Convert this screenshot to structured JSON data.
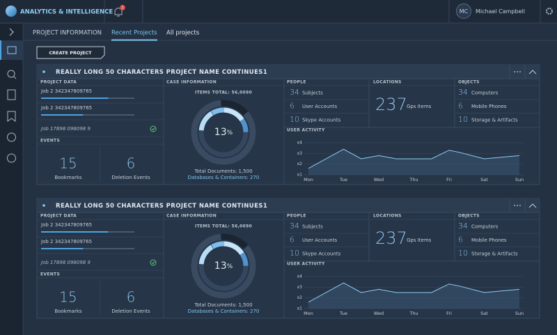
{
  "header": {
    "brand": "ANALYTICS & INTELLIGENCE",
    "notifications": "3",
    "user_initials": "MC",
    "user_name": "Michael Campbell"
  },
  "tabs": {
    "section": "PROJECT INFORMATION",
    "items": [
      "Recent Projects",
      "All projects"
    ]
  },
  "create_button": "CREATE PROJECT",
  "projects": [
    {
      "title": "REALLY LONG 50 CHARACTERS PROJECT NAME CONTINUES1",
      "project_data": {
        "label": "PROJECT DATA",
        "jobs": [
          {
            "name": "Job 2 342347809765",
            "progress": 72
          },
          {
            "name": "Job 2 342347809765",
            "progress": 45
          },
          {
            "name": "Job 17898 098098 9"
          }
        ]
      },
      "events": {
        "label": "EVENTS",
        "items": [
          {
            "count": 15,
            "label": "Bookmarks"
          },
          {
            "count": 6,
            "label": "Deletion Events"
          }
        ]
      },
      "case": {
        "label": "CASE INFORMATION",
        "items_total": "ITEMS TOTAL: 56,0090",
        "percent_value": "13",
        "percent_sign": "%",
        "total_documents": "Total Documents: 1,500",
        "databases": "Databases & Containers: 270"
      },
      "people": {
        "label": "PEOPLE",
        "items": [
          {
            "count": 34,
            "label": "Subjects"
          },
          {
            "count": 6,
            "label": "User Accounts"
          },
          {
            "count": 10,
            "label": "Skype Accounts"
          }
        ]
      },
      "locations": {
        "label": "LOCATIONS",
        "items": [
          {
            "count": 237,
            "label": "Gps Items"
          }
        ]
      },
      "objects": {
        "label": "OBJECTS",
        "items": [
          {
            "count": 34,
            "label": "Computers"
          },
          {
            "count": 6,
            "label": "Mobile Phones"
          },
          {
            "count": 10,
            "label": "Storage & Artifacts"
          }
        ]
      },
      "user_activity": {
        "label": "USER ACTIVITY",
        "categories": [
          "Mon",
          "Tue",
          "Wed",
          "Thu",
          "Fri",
          "Sat",
          "Sun"
        ],
        "x": [
          0,
          1,
          1.5,
          2,
          2.5,
          3.5,
          4,
          4.3,
          5,
          6
        ],
        "values": [
          1.6,
          3.4,
          2.5,
          2.8,
          2.5,
          2.5,
          3.3,
          3.1,
          2.5,
          2.8
        ],
        "xlim": [
          0,
          6
        ],
        "ylim": [
          1,
          4
        ],
        "yticks": [
          {
            "value": 4,
            "label": "x4"
          },
          {
            "value": 3,
            "label": "x3"
          },
          {
            "value": 2,
            "label": "x2"
          },
          {
            "value": 1,
            "label": "x1"
          }
        ]
      }
    },
    {
      "title": "REALLY LONG 50 CHARACTERS PROJECT NAME CONTINUES1",
      "project_data": {
        "label": "PROJECT DATA",
        "jobs": [
          {
            "name": "Job 2 342347809765",
            "progress": 72
          },
          {
            "name": "Job 2 342347809765",
            "progress": 45
          },
          {
            "name": "Job 17898 098098 9"
          }
        ]
      },
      "events": {
        "label": "EVENTS",
        "items": [
          {
            "count": 15,
            "label": "Bookmarks"
          },
          {
            "count": 6,
            "label": "Deletion Events"
          }
        ]
      },
      "case": {
        "label": "CASE INFORMATION",
        "items_total": "ITEMS TOTAL: 56,0090",
        "percent_value": "13",
        "percent_sign": "%",
        "total_documents": "Total Documents: 1,500",
        "databases": "Databases & Containers: 270"
      },
      "people": {
        "label": "PEOPLE",
        "items": [
          {
            "count": 34,
            "label": "Subjects"
          },
          {
            "count": 6,
            "label": "User Accounts"
          },
          {
            "count": 10,
            "label": "Skype Accounts"
          }
        ]
      },
      "locations": {
        "label": "LOCATIONS",
        "items": [
          {
            "count": 237,
            "label": "Gps Items"
          }
        ]
      },
      "objects": {
        "label": "OBJECTS",
        "items": [
          {
            "count": 34,
            "label": "Computers"
          },
          {
            "count": 6,
            "label": "Mobile Phones"
          },
          {
            "count": 10,
            "label": "Storage & Artifacts"
          }
        ]
      },
      "user_activity": {
        "label": "USER ACTIVITY",
        "categories": [
          "Mon",
          "Tue",
          "Wed",
          "Thu",
          "Fri",
          "Sat",
          "Sun"
        ],
        "x": [
          0,
          1,
          1.5,
          2,
          2.5,
          3.5,
          4,
          4.3,
          5,
          6
        ],
        "values": [
          1.6,
          3.4,
          2.5,
          2.8,
          2.5,
          2.5,
          3.3,
          3.1,
          2.5,
          2.8
        ],
        "xlim": [
          0,
          6
        ],
        "ylim": [
          1,
          4
        ],
        "yticks": [
          {
            "value": 4,
            "label": "x4"
          },
          {
            "value": 3,
            "label": "x3"
          },
          {
            "value": 2,
            "label": "x2"
          },
          {
            "value": 1,
            "label": "x1"
          }
        ]
      }
    }
  ]
}
